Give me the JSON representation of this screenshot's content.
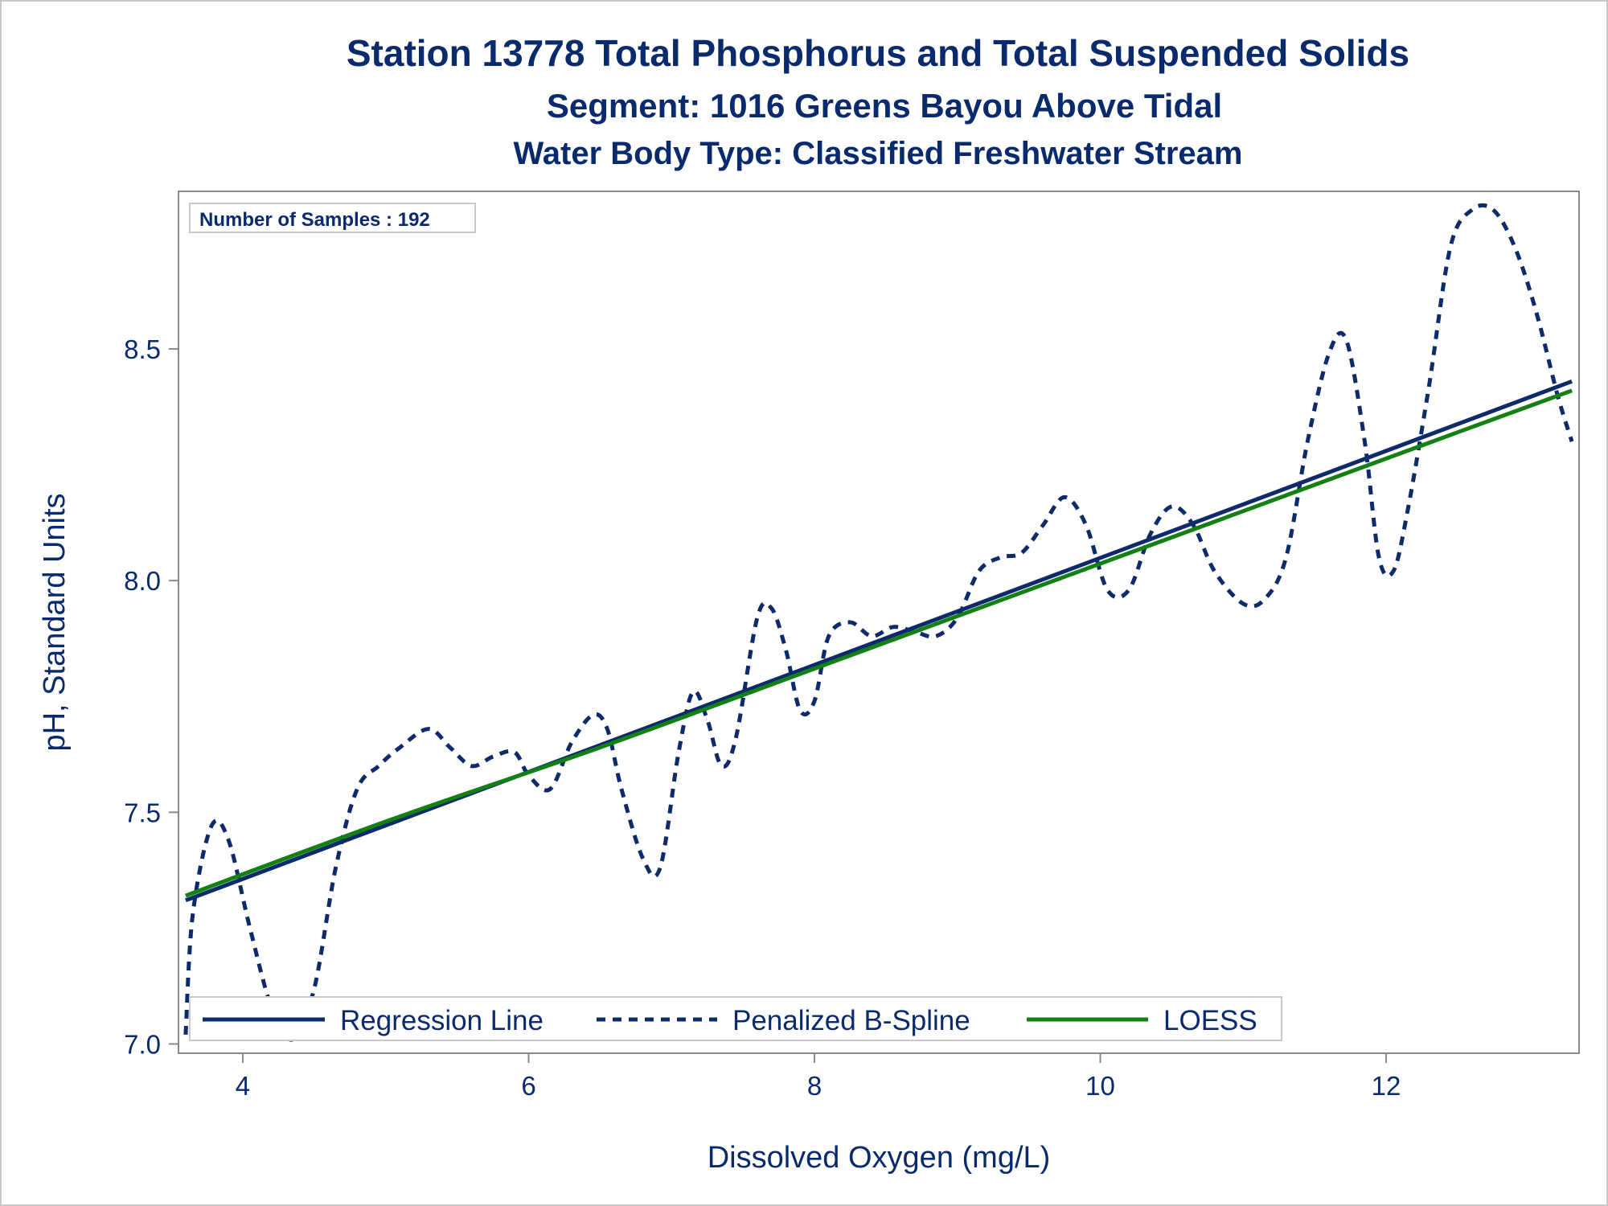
{
  "colors": {
    "text": "#0a2a6e",
    "regression": "#0d2a6b",
    "spline": "#0d2a6b",
    "loess": "#138013",
    "frame": "#8a8a8a",
    "outer_border": "#c8c8c8"
  },
  "chart_data": {
    "type": "line",
    "title": "Station 13778  Total Phosphorus and Total Suspended Solids",
    "subtitle": "Segment: 1016  Greens Bayou Above Tidal",
    "subtitle2": "Water Body Type: Classified Freshwater Stream",
    "xlabel": "Dissolved Oxygen (mg/L)",
    "ylabel": "pH, Standard Units",
    "xlim": [
      3.55,
      13.35
    ],
    "ylim": [
      6.98,
      8.84
    ],
    "xticks": [
      4,
      6,
      8,
      10,
      12
    ],
    "xtick_labels": [
      "4",
      "6",
      "8",
      "10",
      "12"
    ],
    "yticks": [
      7.0,
      7.5,
      8.0,
      8.5
    ],
    "ytick_labels": [
      "7.0",
      "7.5",
      "8.0",
      "8.5"
    ],
    "grid": false,
    "legend_position": "bottom-left-inside",
    "annotation": "Number of Samples : 192",
    "series": [
      {
        "name": "Regression Line",
        "style": "solid",
        "x": [
          3.6,
          13.3
        ],
        "y": [
          7.31,
          8.43
        ]
      },
      {
        "name": "Penalized B-Spline",
        "style": "dashed",
        "x": [
          3.6,
          3.65,
          3.78,
          3.9,
          4.05,
          4.2,
          4.35,
          4.5,
          4.65,
          4.8,
          4.95,
          5.1,
          5.3,
          5.45,
          5.6,
          5.75,
          5.9,
          6.0,
          6.15,
          6.3,
          6.45,
          6.55,
          6.65,
          6.8,
          6.92,
          7.05,
          7.15,
          7.25,
          7.35,
          7.45,
          7.6,
          7.7,
          7.8,
          7.9,
          8.0,
          8.1,
          8.25,
          8.4,
          8.55,
          8.7,
          8.85,
          9.0,
          9.15,
          9.3,
          9.45,
          9.6,
          9.75,
          9.9,
          10.05,
          10.2,
          10.35,
          10.5,
          10.65,
          10.8,
          11.0,
          11.15,
          11.3,
          11.45,
          11.6,
          11.72,
          11.85,
          11.95,
          12.05,
          12.15,
          12.3,
          12.45,
          12.6,
          12.75,
          12.9,
          13.05,
          13.2,
          13.3
        ],
        "y": [
          7.02,
          7.28,
          7.47,
          7.44,
          7.25,
          7.08,
          7.01,
          7.12,
          7.38,
          7.55,
          7.6,
          7.64,
          7.68,
          7.64,
          7.6,
          7.62,
          7.63,
          7.58,
          7.55,
          7.65,
          7.71,
          7.68,
          7.55,
          7.4,
          7.38,
          7.63,
          7.76,
          7.7,
          7.6,
          7.66,
          7.92,
          7.94,
          7.85,
          7.72,
          7.74,
          7.88,
          7.91,
          7.88,
          7.9,
          7.89,
          7.88,
          7.92,
          8.02,
          8.05,
          8.06,
          8.12,
          8.18,
          8.12,
          7.98,
          7.98,
          8.1,
          8.16,
          8.12,
          8.02,
          7.95,
          7.96,
          8.05,
          8.3,
          8.49,
          8.52,
          8.3,
          8.05,
          8.02,
          8.15,
          8.42,
          8.72,
          8.8,
          8.8,
          8.72,
          8.58,
          8.4,
          8.3
        ]
      },
      {
        "name": "LOESS",
        "style": "solid",
        "x": [
          3.6,
          5.0,
          6.5,
          8.0,
          9.5,
          11.0,
          12.5,
          13.3
        ],
        "y": [
          7.32,
          7.48,
          7.64,
          7.81,
          7.98,
          8.15,
          8.32,
          8.41
        ]
      }
    ]
  }
}
